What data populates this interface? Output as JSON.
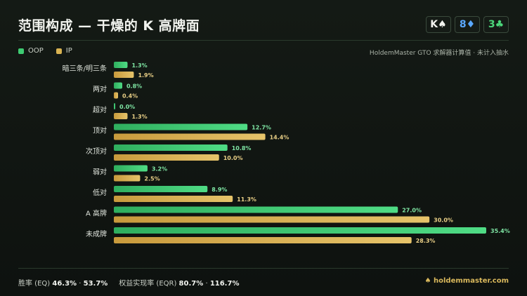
{
  "header": {
    "title": "范围构成 — 干燥的 K 高牌面",
    "cards": [
      {
        "rank": "K",
        "suit": "♠",
        "color": "#f2f4ef"
      },
      {
        "rank": "8",
        "suit": "♦",
        "color": "#5aa8ff"
      },
      {
        "rank": "3",
        "suit": "♣",
        "color": "#4bd67a"
      }
    ]
  },
  "legend": {
    "oop": "OOP",
    "ip": "IP"
  },
  "source": "HoldemMaster GTO 求解器计算值 · 未计入抽水",
  "colors": {
    "oop": "#3ecb72",
    "ip": "#d9b352"
  },
  "chart_data": {
    "type": "bar",
    "orientation": "horizontal",
    "categories": [
      "暗三条/明三条",
      "两对",
      "超对",
      "顶对",
      "次顶对",
      "弱对",
      "低对",
      "A 高牌",
      "未成牌"
    ],
    "series": [
      {
        "name": "OOP",
        "values": [
          1.3,
          0.8,
          0.0,
          12.7,
          10.8,
          3.2,
          8.9,
          27.0,
          35.4
        ]
      },
      {
        "name": "IP",
        "values": [
          1.9,
          0.4,
          1.3,
          14.4,
          10.0,
          2.5,
          11.3,
          30.0,
          28.3
        ]
      }
    ],
    "labels": {
      "OOP": [
        "1.3%",
        "0.8%",
        "0.0%",
        "12.7%",
        "10.8%",
        "3.2%",
        "8.9%",
        "27.0%",
        "35.4%"
      ],
      "IP": [
        "1.9%",
        "0.4%",
        "1.3%",
        "14.4%",
        "10.0%",
        "2.5%",
        "11.3%",
        "30.0%",
        "28.3%"
      ]
    },
    "xlim": [
      0,
      35.4
    ],
    "grid": false,
    "legend_position": "top-left"
  },
  "footer": {
    "eq_label": "胜率 (EQ)",
    "eq_oop": "46.3%",
    "eq_sep": "·",
    "eq_ip": "53.7%",
    "eqr_label": "权益实现率 (EQR)",
    "eqr_oop": "80.7%",
    "eqr_sep": "·",
    "eqr_ip": "116.7%",
    "brand": "holdemmaster.com",
    "brand_icon": "spade-icon"
  }
}
